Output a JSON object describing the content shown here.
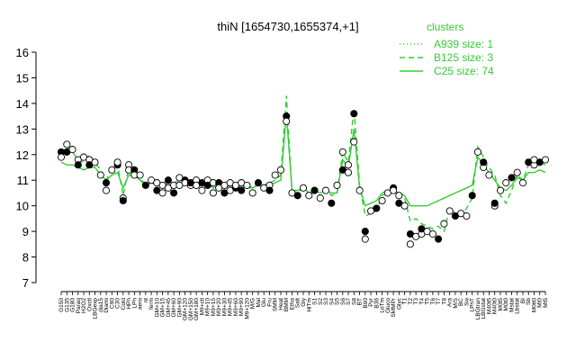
{
  "chart_data": {
    "type": "line",
    "title": "thiN [1654730,1655374,+1]",
    "xlabel": "",
    "ylabel": "",
    "ylim": [
      7,
      16
    ],
    "yticks": [
      7,
      8,
      9,
      10,
      11,
      12,
      13,
      14,
      15,
      16
    ],
    "legend": {
      "title": "clusters",
      "placement": "top-right",
      "color": "#33cc33",
      "entries": [
        {
          "label": "A939 size: 1",
          "style": "dotted"
        },
        {
          "label": "B125 size: 3",
          "style": "dashed"
        },
        {
          "label": "C25 size: 74",
          "style": "solid"
        }
      ]
    },
    "xtick_labels": [
      "G150",
      "G135",
      "G180",
      "Paraq",
      "H2O2",
      "Oxctl",
      "LBGexp",
      "dia15",
      "Diami",
      "C90",
      "C30",
      "Cold",
      "HPh",
      "LPh",
      "aero",
      "nt",
      "ferm",
      "GM+10",
      "GM+15",
      "GM+45",
      "GM+60",
      "GM+90",
      "GM+120",
      "GM+150",
      "GM+180",
      "M9+ctl",
      "M9+10",
      "M9+15",
      "M9+20",
      "M9+30",
      "M9+45",
      "M9+60",
      "M9+90",
      "M9+120",
      "M/G",
      "Mal",
      "Glu",
      "Fru",
      "SMM",
      "Heat",
      "BMM",
      "Etha",
      "Salt",
      "Gly",
      "HiTm",
      "S1",
      "S2",
      "S3",
      "S4",
      "S5",
      "S6",
      "S7",
      "S8",
      "BT",
      "B60",
      "Pyr",
      "B36",
      "LoTm",
      "Gluco",
      "SMMPr",
      "Glyc",
      "T1",
      "T2",
      "T3",
      "T4",
      "T5",
      "T6",
      "T7",
      "T8",
      "Ara",
      "M/S",
      "BC",
      "Sw",
      "LPhT",
      "LBGtran",
      "LBGstat",
      "M40t5",
      "M40t0",
      "M0t5",
      "M0t0",
      "Mstat",
      "Lbstat",
      "BI",
      "Sb",
      "M0tt0",
      "Mt0",
      "Mt5"
    ],
    "x": [
      1,
      2,
      3,
      4,
      5,
      6,
      7,
      8,
      9,
      10,
      11,
      12,
      13,
      14,
      15,
      16,
      17,
      18,
      19,
      20,
      21,
      22,
      23,
      24,
      25,
      26,
      27,
      28,
      29,
      30,
      31,
      32,
      33,
      34,
      35,
      36,
      37,
      38,
      39,
      40,
      41,
      42,
      43,
      44,
      45,
      46,
      47,
      48,
      49,
      50,
      51,
      52,
      53,
      54,
      55,
      56,
      57,
      58,
      59,
      60,
      61,
      62,
      63,
      64,
      65,
      66,
      67,
      68,
      69,
      70,
      71,
      72,
      73,
      74,
      75,
      76,
      77,
      78,
      79,
      80,
      81,
      82,
      83,
      84,
      85,
      86,
      87
    ],
    "series": [
      {
        "name": "B125 size: 3",
        "style": "dashed",
        "values": [
          12.0,
          12.3,
          12.1,
          11.8,
          11.7,
          12.0,
          11.7,
          11.4,
          11.0,
          11.5,
          11.6,
          10.4,
          11.5,
          11.4,
          11.0,
          10.9,
          11.0,
          10.9,
          10.9,
          10.8,
          10.9,
          11.0,
          11.0,
          10.9,
          10.9,
          10.9,
          11.0,
          10.8,
          10.9,
          10.8,
          10.9,
          10.8,
          10.9,
          10.8,
          10.7,
          10.9,
          10.8,
          10.9,
          11.0,
          11.2,
          14.3,
          10.5,
          10.5,
          10.7,
          10.5,
          10.6,
          10.5,
          10.6,
          10.4,
          10.5,
          12.1,
          11.7,
          13.8,
          10.8,
          9.6,
          9.7,
          9.8,
          10.4,
          10.5,
          10.6,
          10.5,
          10.3,
          9.4,
          9.5,
          9.3,
          9.2,
          9.1,
          9.2,
          9.0,
          9.9,
          9.7,
          9.6,
          9.9,
          10.3,
          12.3,
          11.9,
          11.5,
          11.2,
          10.4,
          10.1,
          10.6,
          11.2,
          11.0,
          11.6,
          11.6,
          11.7,
          11.6
        ]
      },
      {
        "name": "C25 size: 74",
        "style": "solid",
        "values": [
          11.7,
          11.6,
          11.6,
          11.5,
          11.4,
          11.5,
          11.5,
          11.2,
          11.0,
          11.2,
          11.3,
          10.7,
          11.2,
          11.2,
          11.0,
          10.8,
          10.9,
          10.8,
          10.8,
          10.8,
          10.8,
          10.9,
          10.9,
          10.8,
          10.8,
          10.8,
          10.9,
          10.7,
          10.8,
          10.7,
          10.8,
          10.7,
          10.8,
          10.7,
          10.7,
          10.8,
          10.7,
          10.8,
          10.9,
          11.0,
          13.6,
          10.6,
          10.6,
          10.7,
          10.5,
          10.6,
          10.5,
          10.6,
          10.5,
          10.5,
          11.8,
          11.5,
          13.0,
          10.7,
          10.0,
          10.1,
          10.2,
          10.5,
          10.6,
          10.6,
          10.5,
          10.4,
          10.0,
          10.0,
          10.0,
          10.0,
          10.1,
          10.2,
          10.3,
          10.4,
          10.5,
          10.6,
          10.7,
          10.8,
          11.9,
          11.6,
          11.3,
          11.0,
          10.7,
          10.6,
          10.8,
          11.1,
          11.0,
          11.3,
          11.3,
          11.4,
          11.3
        ]
      }
    ],
    "points": [
      [
        1,
        12.1
      ],
      [
        1,
        11.9
      ],
      [
        2,
        12.4
      ],
      [
        2,
        12.1
      ],
      [
        3,
        12.2
      ],
      [
        4,
        11.8
      ],
      [
        4,
        11.6
      ],
      [
        5,
        11.9
      ],
      [
        6,
        11.8
      ],
      [
        6,
        11.6
      ],
      [
        7,
        11.7
      ],
      [
        8,
        11.2
      ],
      [
        9,
        10.9
      ],
      [
        9,
        10.6
      ],
      [
        10,
        11.4
      ],
      [
        11,
        11.6
      ],
      [
        11,
        11.7
      ],
      [
        12,
        10.3
      ],
      [
        12,
        10.2
      ],
      [
        13,
        11.6
      ],
      [
        13,
        11.4
      ],
      [
        14,
        11.4
      ],
      [
        14,
        11.2
      ],
      [
        15,
        11.2
      ],
      [
        16,
        10.8
      ],
      [
        17,
        11.0
      ],
      [
        18,
        10.9
      ],
      [
        18,
        10.6
      ],
      [
        19,
        10.8
      ],
      [
        19,
        10.5
      ],
      [
        20,
        11.0
      ],
      [
        20,
        10.7
      ],
      [
        21,
        10.8
      ],
      [
        21,
        10.5
      ],
      [
        22,
        11.1
      ],
      [
        22,
        10.8
      ],
      [
        23,
        11.0
      ],
      [
        23,
        10.9
      ],
      [
        24,
        10.8
      ],
      [
        24,
        10.9
      ],
      [
        25,
        11.0
      ],
      [
        25,
        10.8
      ],
      [
        26,
        10.9
      ],
      [
        26,
        10.6
      ],
      [
        27,
        11.0
      ],
      [
        27,
        10.8
      ],
      [
        28,
        10.9
      ],
      [
        28,
        10.5
      ],
      [
        29,
        10.9
      ],
      [
        29,
        10.7
      ],
      [
        30,
        10.8
      ],
      [
        30,
        10.5
      ],
      [
        31,
        10.9
      ],
      [
        31,
        10.6
      ],
      [
        32,
        10.7
      ],
      [
        32,
        10.8
      ],
      [
        33,
        10.9
      ],
      [
        33,
        10.6
      ],
      [
        34,
        10.8
      ],
      [
        35,
        10.5
      ],
      [
        36,
        10.9
      ],
      [
        37,
        10.7
      ],
      [
        38,
        10.8
      ],
      [
        38,
        10.6
      ],
      [
        39,
        11.2
      ],
      [
        40,
        11.4
      ],
      [
        41,
        13.5
      ],
      [
        41,
        13.3
      ],
      [
        42,
        10.5
      ],
      [
        43,
        10.4
      ],
      [
        44,
        10.7
      ],
      [
        45,
        10.4
      ],
      [
        46,
        10.6
      ],
      [
        47,
        10.3
      ],
      [
        48,
        10.6
      ],
      [
        49,
        10.1
      ],
      [
        50,
        10.8
      ],
      [
        51,
        12.1
      ],
      [
        51,
        11.4
      ],
      [
        52,
        11.6
      ],
      [
        52,
        11.3
      ],
      [
        53,
        13.6
      ],
      [
        53,
        12.5
      ],
      [
        54,
        10.6
      ],
      [
        55,
        9.0
      ],
      [
        55,
        8.7
      ],
      [
        56,
        9.8
      ],
      [
        57,
        9.9
      ],
      [
        58,
        10.2
      ],
      [
        59,
        10.5
      ],
      [
        60,
        10.7
      ],
      [
        60,
        10.6
      ],
      [
        61,
        10.4
      ],
      [
        61,
        10.1
      ],
      [
        62,
        10.0
      ],
      [
        63,
        8.5
      ],
      [
        63,
        8.9
      ],
      [
        64,
        8.8
      ],
      [
        65,
        8.9
      ],
      [
        65,
        9.1
      ],
      [
        66,
        9.0
      ],
      [
        67,
        8.9
      ],
      [
        68,
        8.7
      ],
      [
        69,
        9.3
      ],
      [
        70,
        9.8
      ],
      [
        71,
        9.6
      ],
      [
        72,
        9.7
      ],
      [
        73,
        9.6
      ],
      [
        74,
        10.4
      ],
      [
        75,
        12.1
      ],
      [
        76,
        11.5
      ],
      [
        76,
        11.7
      ],
      [
        77,
        11.2
      ],
      [
        78,
        10.0
      ],
      [
        78,
        10.1
      ],
      [
        79,
        10.6
      ],
      [
        80,
        10.9
      ],
      [
        81,
        11.1
      ],
      [
        82,
        11.3
      ],
      [
        83,
        10.9
      ],
      [
        84,
        11.7
      ],
      [
        85,
        11.6
      ],
      [
        85,
        11.8
      ],
      [
        86,
        11.7
      ],
      [
        87,
        11.8
      ]
    ]
  }
}
